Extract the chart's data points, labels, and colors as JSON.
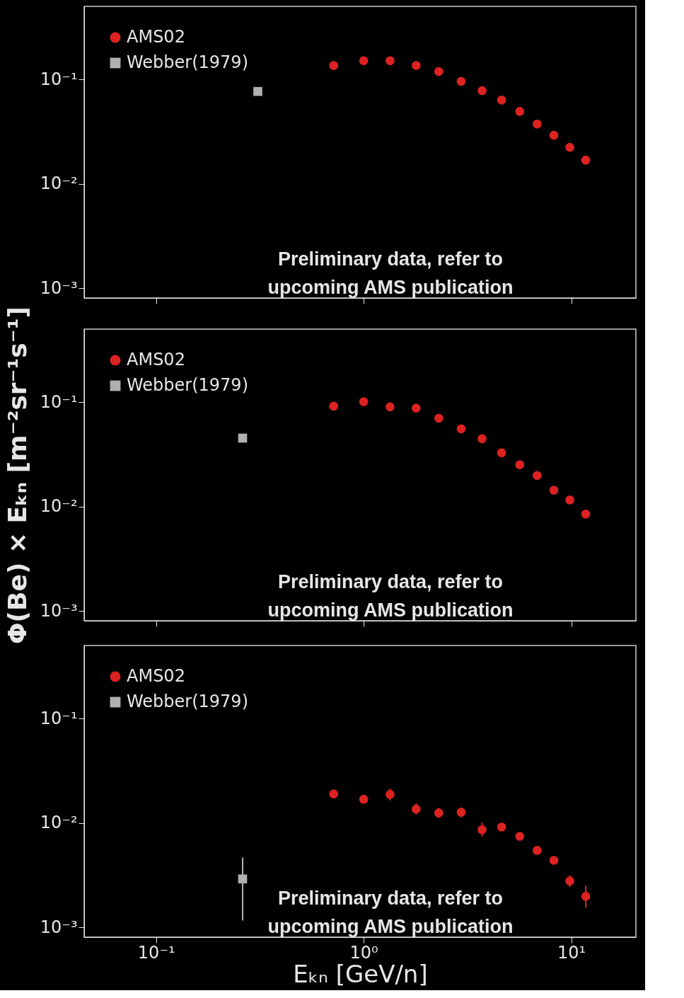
{
  "chart_data": [
    {
      "type": "scatter",
      "legend": "top left",
      "tick_labels": "y",
      "log": "xy",
      "xlim": [
        0.045,
        20.5
      ],
      "ylim": [
        0.00081,
        0.5
      ],
      "xticks": [
        {
          "value": 0.1,
          "label": null
        },
        {
          "value": 1,
          "label": null
        },
        {
          "value": 10,
          "label": null
        }
      ],
      "yticks": [
        {
          "value": 0.001,
          "label": "10⁻³"
        },
        {
          "value": 0.01,
          "label": "10⁻²"
        },
        {
          "value": 0.1,
          "label": "10⁻¹"
        }
      ],
      "annotations": [
        "Preliminary data, refer to\nupcoming AMS publication"
      ],
      "series": [
        {
          "name": "AMS02",
          "color": "#dd2222",
          "marker": "circle",
          "x": [
            0.717,
            1.0,
            1.34,
            1.79,
            2.3,
            2.95,
            3.72,
            4.62,
            5.65,
            6.85,
            8.25,
            9.85,
            11.75
          ],
          "values": [
            0.136,
            0.151,
            0.151,
            0.136,
            0.119,
            0.0957,
            0.078,
            0.0635,
            0.0494,
            0.0374,
            0.0292,
            0.0224,
            0.0169
          ]
        },
        {
          "name": "Webber(1979)",
          "color": "#b0b0b0",
          "marker": "square",
          "x": [
            0.309
          ],
          "values": [
            0.0767
          ]
        }
      ]
    },
    {
      "type": "scatter",
      "legend": "top left",
      "tick_labels": "y",
      "log": "xy",
      "ylabel": "Φ(Be) × Eₖₙ [m⁻²sr⁻¹s⁻¹]",
      "xlim": [
        0.045,
        20.5
      ],
      "ylim": [
        0.00081,
        0.5
      ],
      "xticks": [
        {
          "value": 0.1,
          "label": null
        },
        {
          "value": 1,
          "label": null
        },
        {
          "value": 10,
          "label": null
        }
      ],
      "yticks": [
        {
          "value": 0.001,
          "label": "10⁻³"
        },
        {
          "value": 0.01,
          "label": "10⁻²"
        },
        {
          "value": 0.1,
          "label": "10⁻¹"
        }
      ],
      "annotations": [
        "Preliminary data, refer to\nupcoming AMS publication"
      ],
      "series": [
        {
          "name": "AMS02",
          "color": "#dd2222",
          "marker": "circle",
          "x": [
            0.717,
            1.0,
            1.34,
            1.79,
            2.3,
            2.95,
            3.72,
            4.62,
            5.65,
            6.85,
            8.25,
            9.85,
            11.75
          ],
          "values": [
            0.0916,
            0.101,
            0.0903,
            0.0877,
            0.0704,
            0.0556,
            0.0447,
            0.0328,
            0.0252,
            0.0199,
            0.0144,
            0.0116,
            0.0085
          ]
        },
        {
          "name": "Webber(1979)",
          "color": "#b0b0b0",
          "marker": "square",
          "x": [
            0.261
          ],
          "values": [
            0.0453
          ]
        }
      ]
    },
    {
      "type": "scatter",
      "legend": "top left",
      "log": "xy",
      "xlabel": "Eₖₙ [GeV/n]",
      "xlim": [
        0.045,
        20.5
      ],
      "ylim": [
        0.00081,
        0.5
      ],
      "xticks": [
        {
          "value": 0.1,
          "label": "10⁻¹"
        },
        {
          "value": 1,
          "label": "10⁰"
        },
        {
          "value": 10,
          "label": "10¹"
        }
      ],
      "yticks": [
        {
          "value": 0.001,
          "label": "10⁻³"
        },
        {
          "value": 0.01,
          "label": "10⁻²"
        },
        {
          "value": 0.1,
          "label": "10⁻¹"
        }
      ],
      "annotations": [
        "Preliminary data, refer to\nupcoming AMS publication"
      ],
      "series": [
        {
          "name": "AMS02",
          "color": "#dd2222",
          "marker": "circle",
          "x": [
            0.717,
            1.0,
            1.34,
            1.79,
            2.3,
            2.95,
            3.72,
            4.62,
            5.65,
            6.85,
            8.25,
            9.85,
            11.75
          ],
          "values": [
            0.019,
            0.0169,
            0.0188,
            0.0136,
            0.0125,
            0.0127,
            0.00863,
            0.00916,
            0.00746,
            0.00548,
            0.0044,
            0.00279,
            0.00199
          ],
          "errors": [
            null,
            null,
            [
              0.0165,
              0.0214
            ],
            [
              0.0121,
              0.0155
            ],
            [
              0.0112,
              0.014
            ],
            [
              0.0113,
              0.0141
            ],
            [
              0.00746,
              0.0101
            ],
            null,
            null,
            null,
            null,
            [
              0.00245,
              0.00318
            ],
            [
              0.00155,
              0.00252
            ]
          ]
        },
        {
          "name": "Webber(1979)",
          "color": "#b0b0b0",
          "marker": "square",
          "x": [
            0.261
          ],
          "values": [
            0.00292
          ],
          "errors": [
            [
              0.00117,
              0.00467
            ]
          ]
        }
      ]
    }
  ]
}
